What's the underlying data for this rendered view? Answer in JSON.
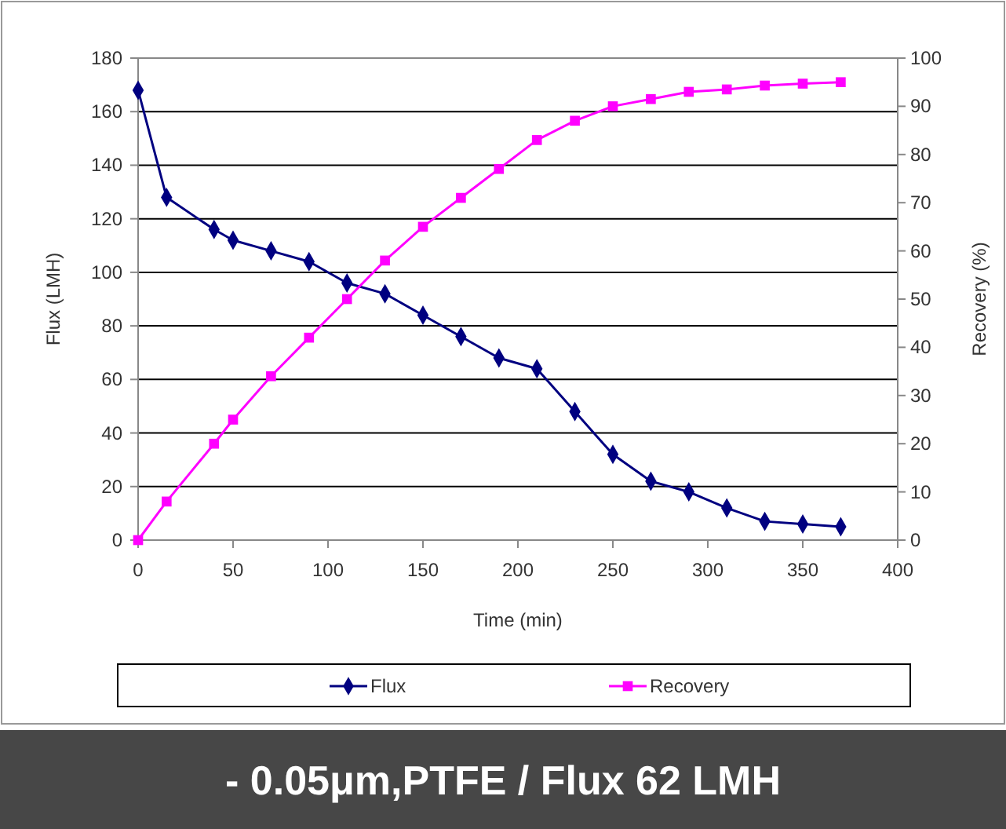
{
  "chart_data": {
    "type": "line",
    "title": "- 0.05μm,PTFE / Flux 62 LMH",
    "xlabel": "Time (min)",
    "ylabel": "Flux (LMH)",
    "y2label": "Recovery (%)",
    "x": [
      0,
      15,
      40,
      50,
      70,
      90,
      110,
      130,
      150,
      170,
      190,
      210,
      230,
      250,
      270,
      290,
      310,
      330,
      350,
      370
    ],
    "series": [
      {
        "name": "Flux",
        "color": "#000080",
        "marker": "diamond",
        "values": [
          168,
          128,
          116,
          112,
          108,
          104,
          96,
          92,
          84,
          76,
          68,
          64,
          48,
          32,
          22,
          18,
          12,
          7,
          6,
          5
        ]
      },
      {
        "name": "Recovery",
        "color": "#ff00ff",
        "marker": "square",
        "axis": "y2",
        "values": [
          0,
          8,
          20,
          25,
          34,
          42,
          50,
          58,
          65,
          71,
          77,
          83,
          87,
          90,
          91.5,
          93,
          93.5,
          94.3,
          94.7,
          95
        ]
      }
    ],
    "xlim": [
      0,
      400
    ],
    "xticks": [
      0,
      50,
      100,
      150,
      200,
      250,
      300,
      350,
      400
    ],
    "ylim": [
      0,
      180
    ],
    "yticks": [
      0,
      20,
      40,
      60,
      80,
      100,
      120,
      140,
      160,
      180
    ],
    "y2lim": [
      0,
      100
    ],
    "y2ticks": [
      0,
      10,
      20,
      30,
      40,
      50,
      60,
      70,
      80,
      90,
      100
    ],
    "grid": "y",
    "legend": "bottom",
    "line_style": "solid"
  }
}
